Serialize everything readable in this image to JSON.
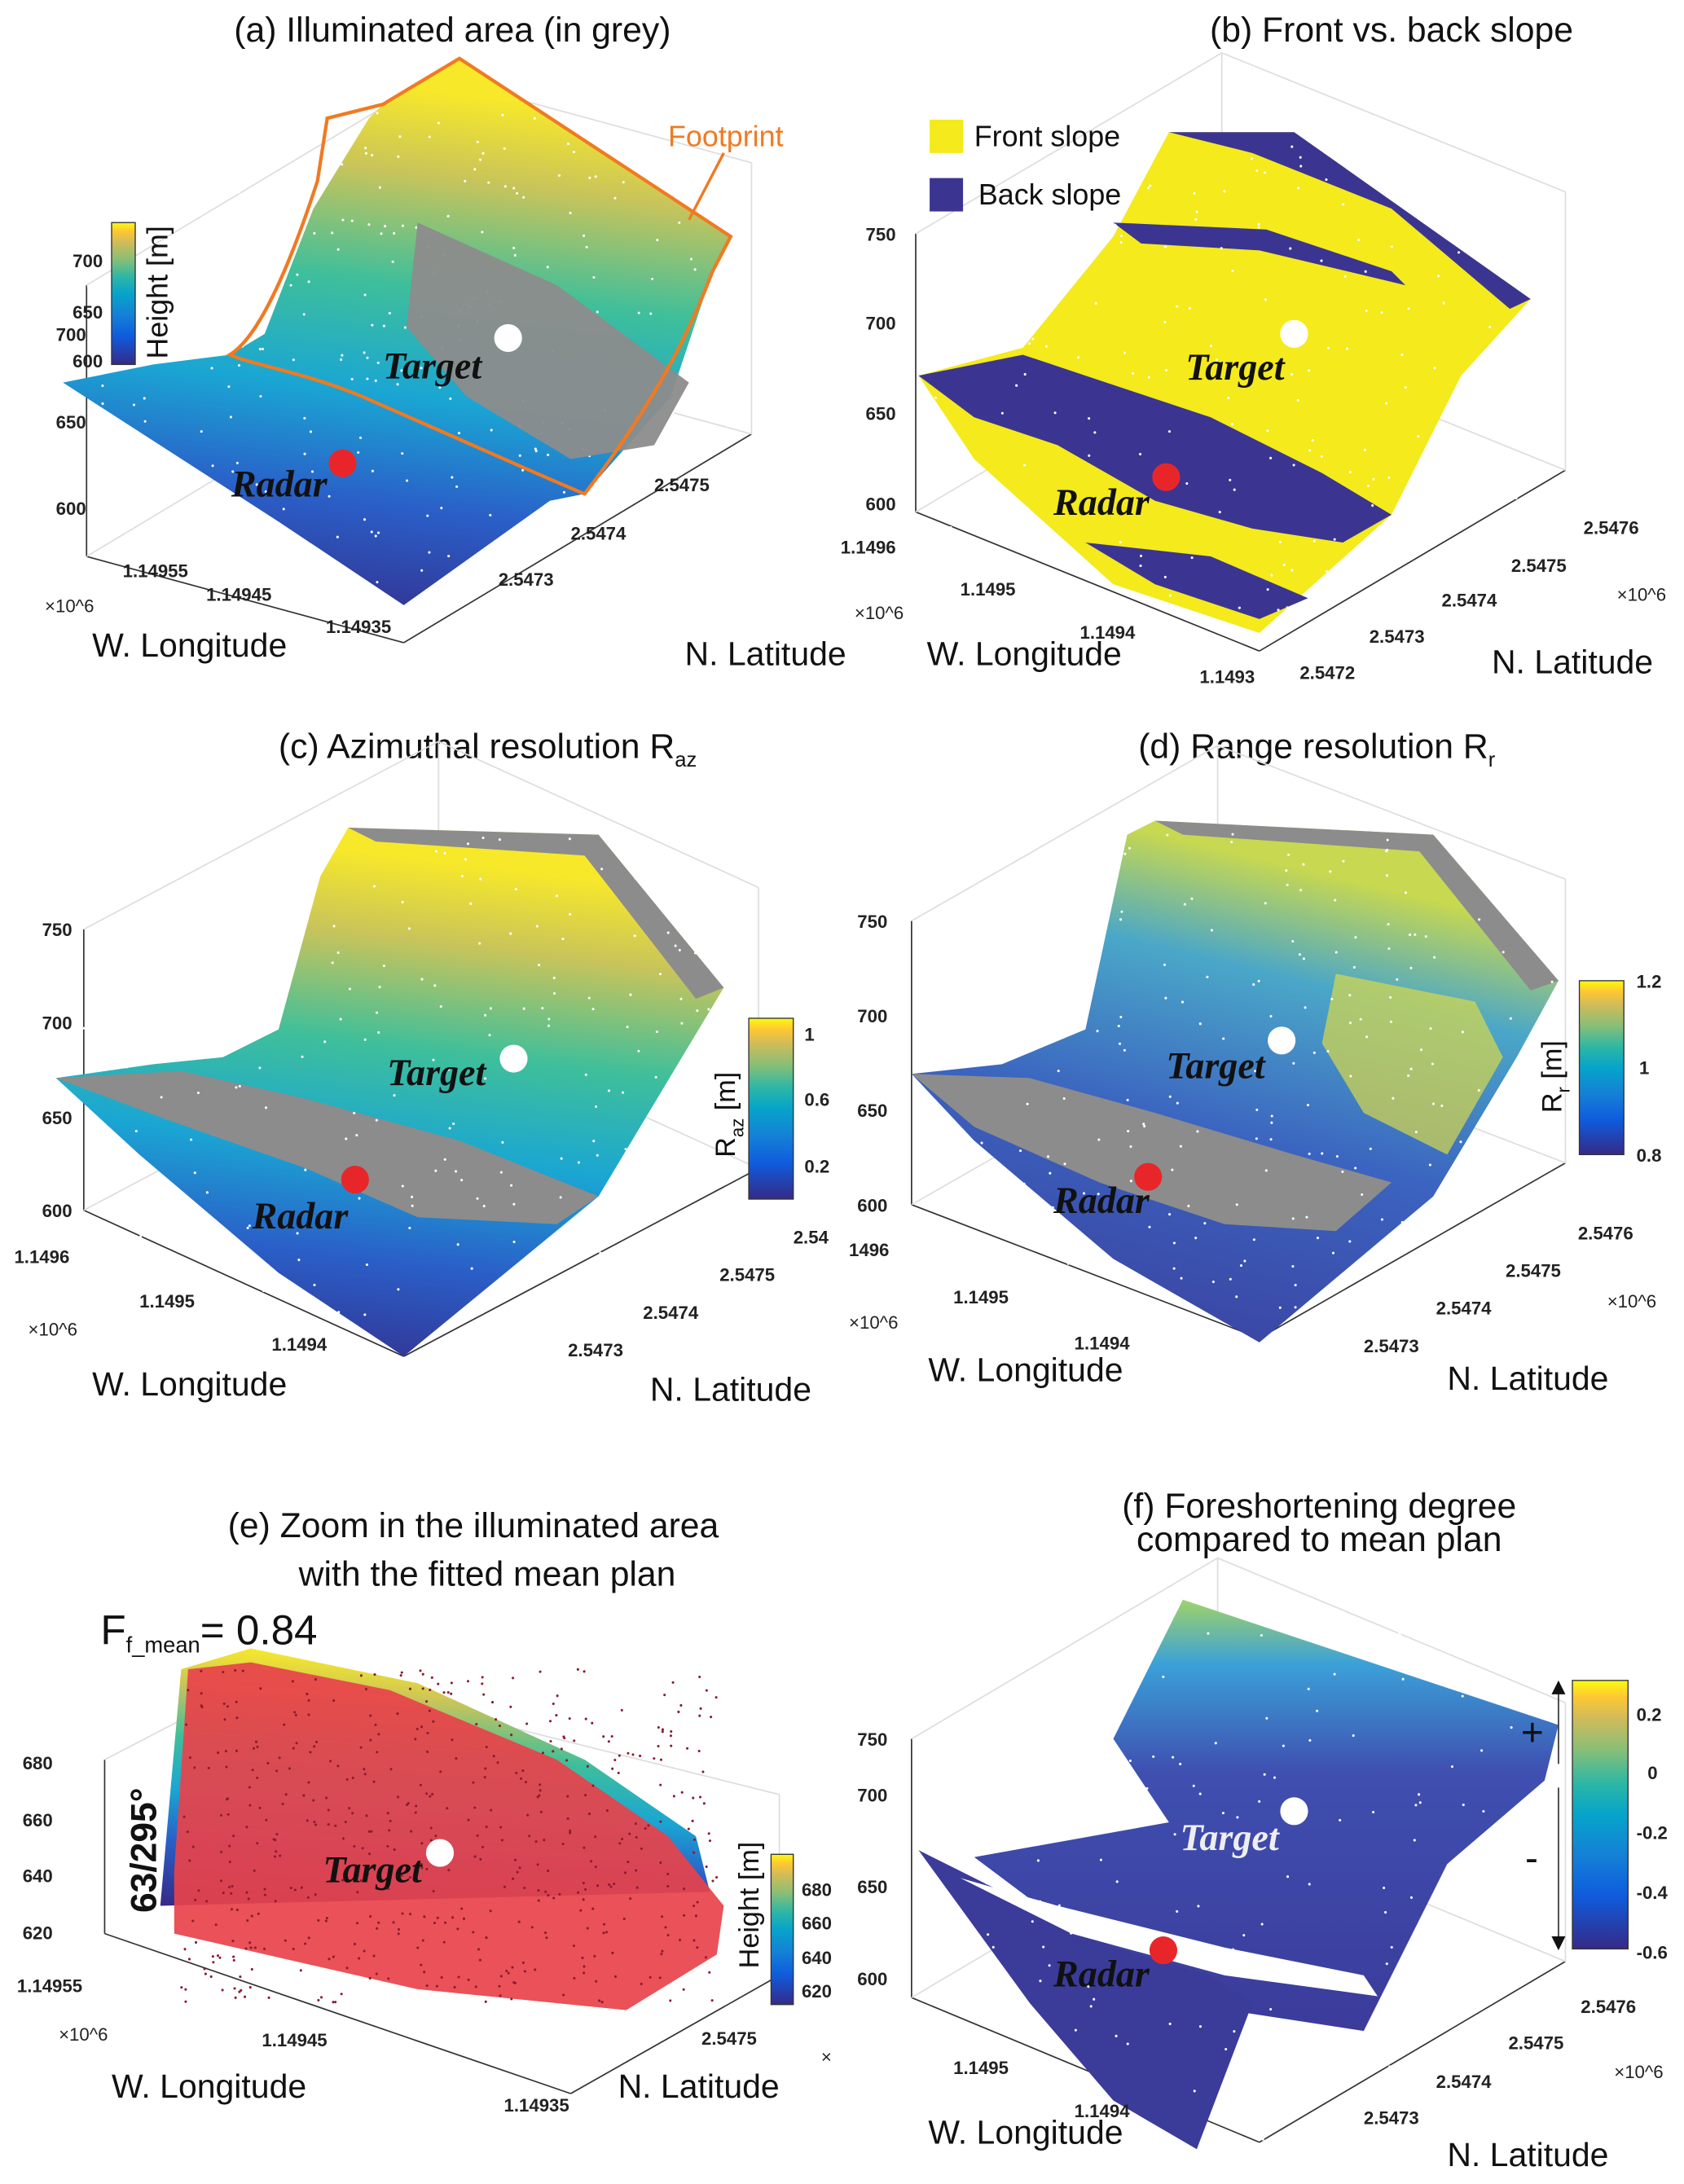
{
  "chart_data": [
    {
      "type": "scatter3d",
      "title": "(a) Illuminated area (in grey)",
      "xlabel": "W. Longitude",
      "ylabel": "N. Latitude",
      "x_exponent": "×10^6",
      "z_ticks": [
        "600",
        "650",
        "700"
      ],
      "x_ticks": [
        "1.14955",
        "1.14945",
        "1.14935"
      ],
      "y_ticks": [
        "2.5473",
        "2.5474",
        "2.5475"
      ],
      "colorbar": {
        "label": "Height [m]",
        "ticks": [
          "600",
          "650",
          "700"
        ],
        "colormap": "parula"
      },
      "annotations": {
        "footprint": "Footprint",
        "target": "Target",
        "radar": "Radar"
      },
      "colors": {
        "illuminated": "#8c8c8c",
        "footprint": "#f07a22",
        "radar": "#e8262a",
        "target": "#ffffff"
      }
    },
    {
      "type": "scatter3d",
      "title": "(b) Front vs. back slope",
      "xlabel": "W. Longitude",
      "ylabel": "N. Latitude",
      "x_exponent": "×10^6",
      "y_exponent": "×10^6",
      "z_ticks": [
        "600",
        "650",
        "700",
        "750"
      ],
      "x_ticks": [
        "1.1496",
        "1.1495",
        "1.1494",
        "1.1493"
      ],
      "y_ticks": [
        "2.5472",
        "2.5473",
        "2.5474",
        "2.5475",
        "2.5476"
      ],
      "legend": [
        {
          "label": "Front slope",
          "color": "#f4ea1c"
        },
        {
          "label": "Back slope",
          "color": "#3b3591"
        }
      ],
      "annotations": {
        "target": "Target",
        "radar": "Radar"
      }
    },
    {
      "type": "scatter3d",
      "title": "(c)  Azimuthal resolution R",
      "title_sub": "az",
      "xlabel": "W. Longitude",
      "ylabel": "N. Latitude",
      "x_exponent": "×10^6",
      "z_ticks": [
        "600",
        "650",
        "700",
        "750"
      ],
      "x_ticks": [
        "1.1496",
        "1.1495",
        "1.1494"
      ],
      "y_ticks": [
        "2.5473",
        "2.5474",
        "2.5475",
        "2.54"
      ],
      "colorbar": {
        "label": "R",
        "label_sub": "az",
        "label_unit": " [m]",
        "ticks": [
          "0.2",
          "0.6",
          "1"
        ],
        "colormap": "parula"
      },
      "annotations": {
        "target": "Target",
        "radar": "Radar"
      },
      "colors": {
        "not_illuminated": "#8c8c8c"
      }
    },
    {
      "type": "scatter3d",
      "title": "(d) Range resolution R",
      "title_sub": "r",
      "xlabel": "W. Longitude",
      "ylabel": "N. Latitude",
      "x_exponent": "×10^6",
      "y_exponent": "×10^6",
      "z_ticks": [
        "600",
        "650",
        "700",
        "750"
      ],
      "x_ticks": [
        "1496",
        "1.1495",
        "1.1494"
      ],
      "y_ticks": [
        "2.5473",
        "2.5474",
        "2.5475",
        "2.5476"
      ],
      "colorbar": {
        "label": "R",
        "label_sub": "r",
        "label_unit": " [m]",
        "ticks": [
          "0.8",
          "1",
          "1.2"
        ],
        "colormap": "parula"
      },
      "annotations": {
        "target": "Target",
        "radar": "Radar"
      }
    },
    {
      "type": "scatter3d",
      "title": "(e) Zoom in the illuminated area",
      "title_line2": "with the fitted mean plan",
      "xlabel": "W. Longitude",
      "ylabel": "N. Latitude",
      "x_exponent": "×10^6",
      "y_exponent": "×",
      "z_ticks": [
        "620",
        "640",
        "660",
        "680"
      ],
      "x_ticks": [
        "1.14955",
        "1.14945",
        "1.14935"
      ],
      "y_ticks": [
        "2.5475"
      ],
      "colorbar": {
        "label": "Height [m]",
        "ticks": [
          "620",
          "640",
          "660",
          "680"
        ],
        "colormap": "parula"
      },
      "annotations": {
        "target": "Target",
        "ff_symbol": "F",
        "ff_sub": "f_mean",
        "ff_value": "= 0.84",
        "angle": "63/295°"
      },
      "colors": {
        "mean_plane": "#e8424a"
      }
    },
    {
      "type": "scatter3d",
      "title": "(f)  Foreshortening degree",
      "title_line2": "compared to mean plan",
      "xlabel": "W. Longitude",
      "ylabel": "N. Latitude",
      "y_exponent": "×10^6",
      "z_ticks": [
        "600",
        "650",
        "700",
        "750"
      ],
      "x_ticks": [
        "1.1495",
        "1.1494"
      ],
      "y_ticks": [
        "2.5473",
        "2.5474",
        "2.5475",
        "2.5476"
      ],
      "colorbar": {
        "ticks": [
          "-0.6",
          "-0.4",
          "-0.2",
          "0",
          "0.2"
        ],
        "colormap": "parula",
        "plus": "+",
        "minus": "-"
      },
      "annotations": {
        "target": "Target",
        "radar": "Radar"
      }
    }
  ]
}
